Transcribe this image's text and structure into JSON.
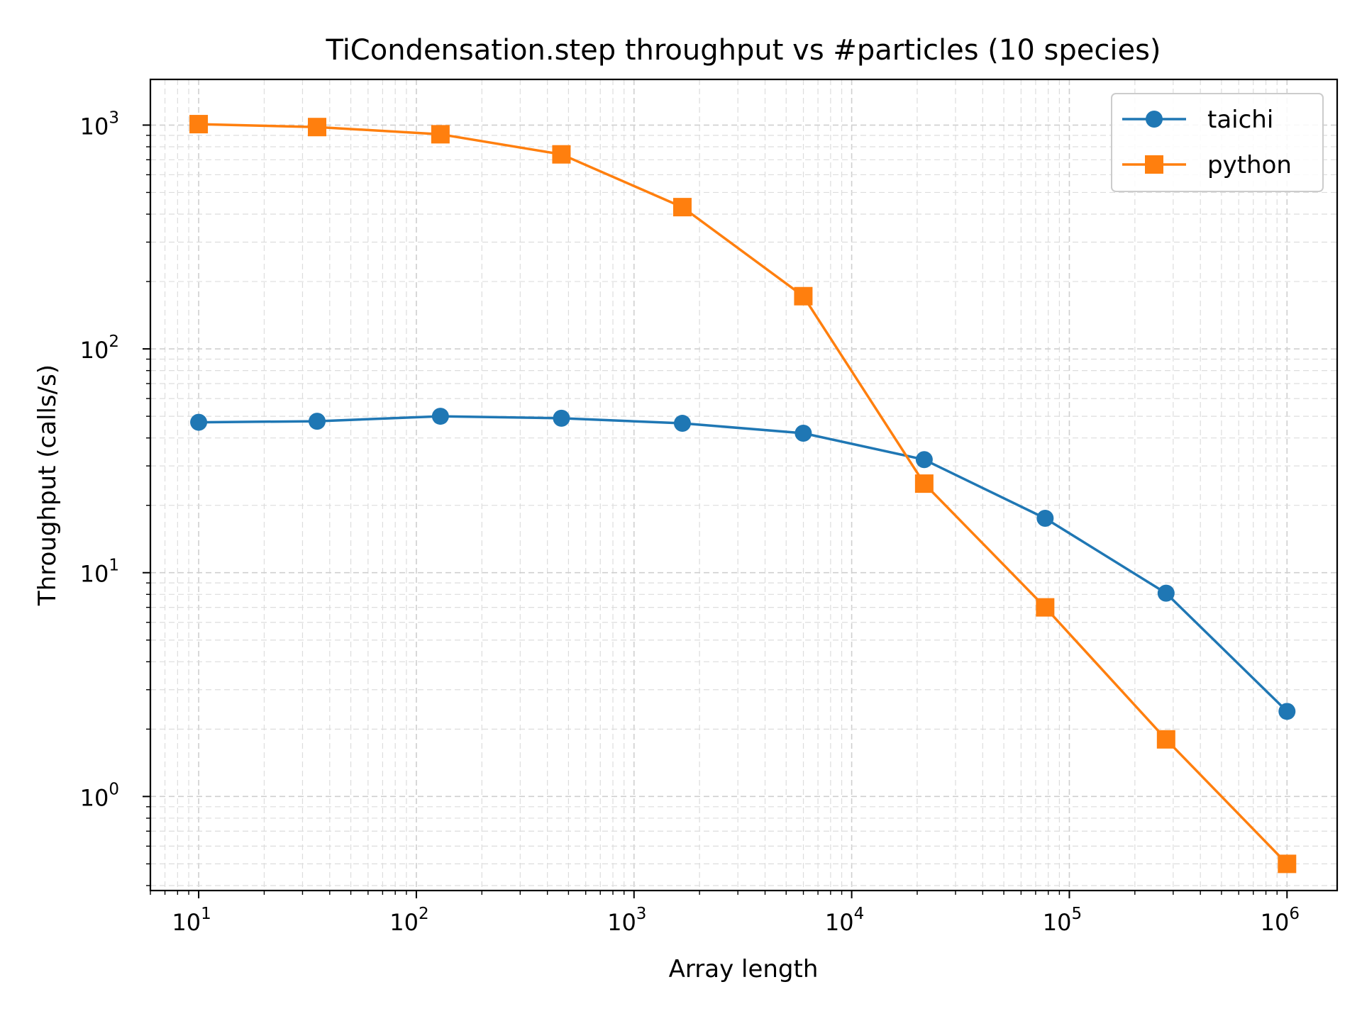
{
  "chart_data": {
    "type": "line",
    "title": "TiCondensation.step throughput vs #particles (10 species)",
    "xlabel": "Array length",
    "ylabel": "Throughput (calls/s)",
    "xscale": "log",
    "yscale": "log",
    "xlim": [
      6,
      1700000
    ],
    "ylim": [
      0.38,
      1600
    ],
    "grid": "both",
    "legend_position": "top-right",
    "x_ticks": [
      {
        "base": "10",
        "exp": "1",
        "value": 10
      },
      {
        "base": "10",
        "exp": "2",
        "value": 100
      },
      {
        "base": "10",
        "exp": "3",
        "value": 1000
      },
      {
        "base": "10",
        "exp": "4",
        "value": 10000
      },
      {
        "base": "10",
        "exp": "5",
        "value": 100000
      },
      {
        "base": "10",
        "exp": "6",
        "value": 1000000
      }
    ],
    "y_ticks": [
      {
        "base": "10",
        "exp": "0",
        "value": 1
      },
      {
        "base": "10",
        "exp": "1",
        "value": 10
      },
      {
        "base": "10",
        "exp": "2",
        "value": 100
      },
      {
        "base": "10",
        "exp": "3",
        "value": 1000
      }
    ],
    "x": [
      10,
      35,
      129,
      464,
      1668,
      5995,
      21544,
      77426,
      278256,
      1000000
    ],
    "series": [
      {
        "name": "taichi",
        "color": "#1f77b4",
        "marker": "circle",
        "values": [
          47,
          47.5,
          50,
          49,
          46.5,
          42,
          32,
          17.5,
          8.1,
          2.4
        ]
      },
      {
        "name": "python",
        "color": "#ff7f0e",
        "marker": "square",
        "values": [
          1010,
          980,
          910,
          740,
          430,
          172,
          25,
          7,
          1.8,
          0.5
        ]
      }
    ]
  }
}
